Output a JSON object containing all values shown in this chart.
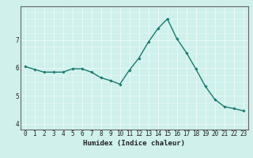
{
  "x": [
    0,
    1,
    2,
    3,
    4,
    5,
    6,
    7,
    8,
    9,
    10,
    11,
    12,
    13,
    14,
    15,
    16,
    17,
    18,
    19,
    20,
    21,
    22,
    23
  ],
  "y": [
    6.05,
    5.95,
    5.85,
    5.85,
    5.85,
    5.97,
    5.97,
    5.85,
    5.65,
    5.55,
    5.42,
    5.92,
    6.35,
    6.92,
    7.4,
    7.75,
    7.05,
    6.55,
    5.97,
    5.35,
    4.88,
    4.62,
    4.55,
    4.47
  ],
  "line_color": "#1a7a6e",
  "marker": "D",
  "markersize": 1.8,
  "linewidth": 1.0,
  "xlabel": "Humidex (Indice chaleur)",
  "xlim": [
    -0.5,
    23.5
  ],
  "ylim": [
    3.8,
    8.2
  ],
  "yticks": [
    4,
    5,
    6,
    7
  ],
  "xtick_labels": [
    "0",
    "1",
    "2",
    "3",
    "4",
    "5",
    "6",
    "7",
    "8",
    "9",
    "10",
    "11",
    "12",
    "13",
    "14",
    "15",
    "16",
    "17",
    "18",
    "19",
    "20",
    "21",
    "22",
    "23"
  ],
  "bg_color": "#cff0eb",
  "grid_color": "#e8faf8",
  "axes_color": "#666666",
  "tick_color": "#222222",
  "xlabel_fontsize": 6.5,
  "tick_fontsize": 5.5
}
